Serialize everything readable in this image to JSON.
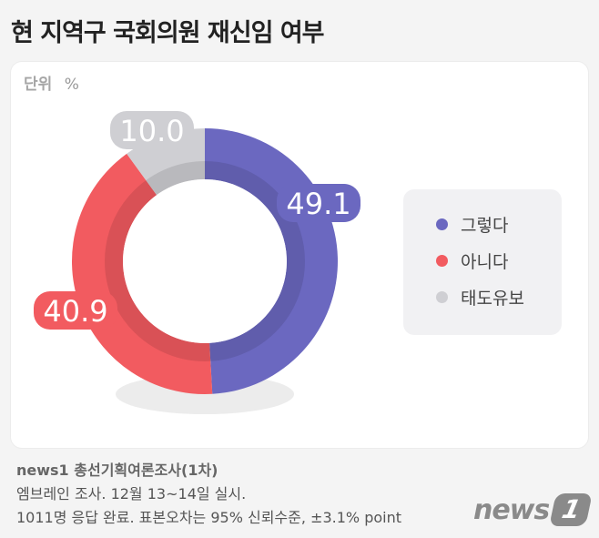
{
  "title": "현 지역구 국회의원 재신임 여부",
  "unit": {
    "label": "단위",
    "value": "%"
  },
  "chart_data": {
    "type": "pie",
    "style": "donut",
    "categories": [
      "그렇다",
      "아니다",
      "태도유보"
    ],
    "values": [
      49.1,
      40.9,
      10.0
    ],
    "labels": [
      "49.1",
      "40.9",
      "10.0"
    ],
    "colors": [
      "#6b68c0",
      "#f25b60",
      "#cfcfd3"
    ],
    "legend_position": "right"
  },
  "source": {
    "title": "news1 총선기획여론조사(1차)",
    "line1": "엠브레인 조사. 12월 13~14일 실시.",
    "line2": "1011명 응답 완료. 표본오차는 95% 신뢰수준, ±3.1% point"
  },
  "logo": {
    "text": "news",
    "badge": "1"
  }
}
